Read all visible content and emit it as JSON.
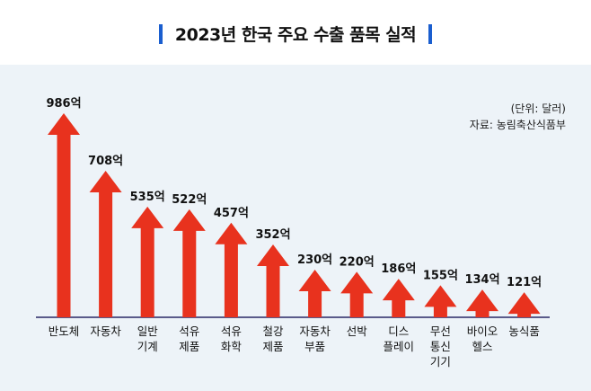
{
  "title": "2023년 한국 주요 수출 품목 실적",
  "colors": {
    "accent": "#1a5ecf",
    "arrow": "#e8321e",
    "background": "#edf3f8",
    "baseline": "#5a5a8a"
  },
  "notes": {
    "unit": "(단위: 달러)",
    "source": "자료: 농림축산식품부"
  },
  "chart_data": {
    "type": "bar",
    "title": "2023년 한국 주요 수출 품목 실적",
    "xlabel": "",
    "ylabel": "",
    "unit": "억 달러",
    "ylim": [
      0,
      1000
    ],
    "categories": [
      [
        "반도체"
      ],
      [
        "자동차"
      ],
      [
        "일반",
        "기계"
      ],
      [
        "석유",
        "제품"
      ],
      [
        "석유",
        "화학"
      ],
      [
        "철강",
        "제품"
      ],
      [
        "자동차",
        "부품"
      ],
      [
        "선박"
      ],
      [
        "디스",
        "플레이"
      ],
      [
        "무선",
        "통신",
        "기기"
      ],
      [
        "바이오",
        "헬스"
      ],
      [
        "농식품"
      ]
    ],
    "values": [
      986,
      708,
      535,
      522,
      457,
      352,
      230,
      220,
      186,
      155,
      134,
      121
    ],
    "value_labels": [
      "986억",
      "708억",
      "535억",
      "522억",
      "457억",
      "352억",
      "230억",
      "220억",
      "186억",
      "155억",
      "134억",
      "121억"
    ]
  }
}
